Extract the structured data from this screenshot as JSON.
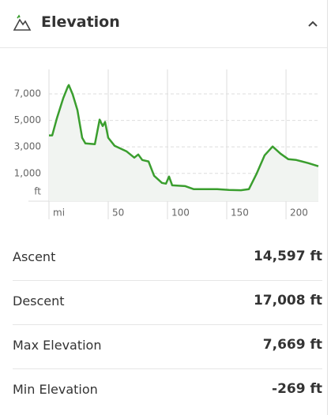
{
  "header": {
    "title": "Elevation"
  },
  "chart_data": {
    "type": "line",
    "x_unit": "mi",
    "y_unit": "ft",
    "x": [
      0,
      2.7,
      6.7,
      12,
      16,
      16.7,
      20,
      24,
      28,
      30.7,
      38.7,
      42.7,
      45.3,
      47.3,
      50,
      55.3,
      65.3,
      72,
      75.3,
      78.7,
      84,
      88.7,
      95.3,
      98.7,
      101.3,
      104,
      115,
      122,
      132,
      142,
      152,
      162,
      168.7,
      175.3,
      182,
      188.7,
      195.3,
      202,
      208.7,
      218.7,
      227.3
    ],
    "series": [
      {
        "color": "#3a9e2e",
        "values": [
          3870,
          3870,
          5180,
          6670,
          7567,
          7669,
          6970,
          5780,
          3690,
          3270,
          3210,
          5060,
          4580,
          4880,
          3690,
          3090,
          2670,
          2190,
          2430,
          2010,
          1900,
          820,
          280,
          220,
          760,
          100,
          40,
          -190,
          -190,
          -190,
          -250,
          -269,
          -190,
          1000,
          2370,
          3030,
          2490,
          2070,
          2010,
          1780,
          1540
        ]
      }
    ],
    "xlim": [
      0,
      227.3
    ],
    "xticks": [
      50,
      100,
      150,
      200
    ],
    "ylim": [
      -1100,
      8850
    ],
    "yticks": [
      {
        "value": 1000,
        "label": "1,000"
      },
      {
        "value": 3000,
        "label": "3,000"
      },
      {
        "value": 5000,
        "label": "5,000"
      },
      {
        "value": 7000,
        "label": "7,000"
      }
    ],
    "grid": true
  },
  "stats": {
    "rows": [
      [
        "Ascent",
        "14,597 ft"
      ],
      [
        "Descent",
        "17,008 ft"
      ],
      [
        "Max Elevation",
        "7,669 ft"
      ],
      [
        "Min Elevation",
        "-269 ft"
      ]
    ]
  }
}
